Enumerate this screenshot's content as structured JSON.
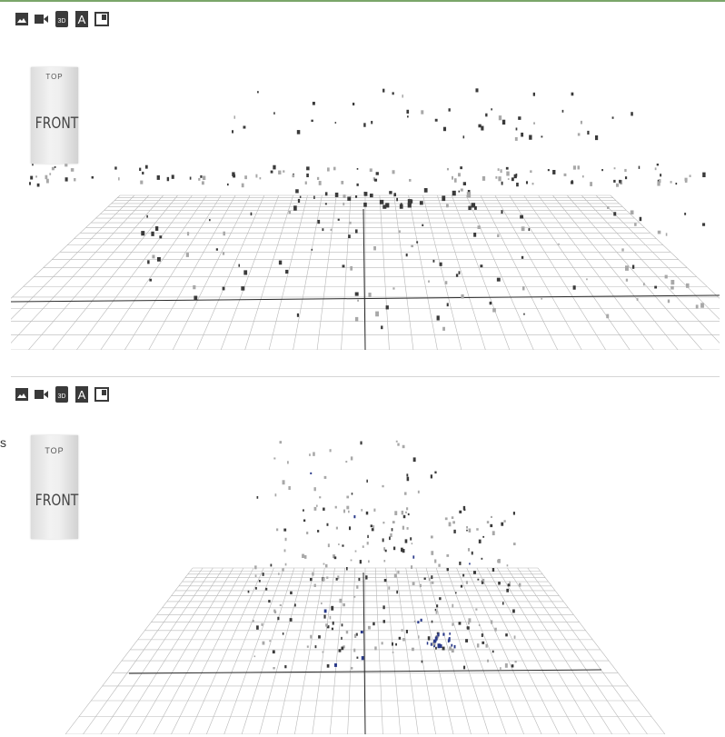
{
  "colors": {
    "accent": "#7aa66a",
    "grid": "#b8b8b8",
    "axis": "#2a2a2a",
    "points_dark": "#3a3a3a",
    "points_light": "#a8a8a8",
    "points_blue": "#2a3a8a"
  },
  "viewers": [
    {
      "toolbar": {
        "icons": [
          "image-icon",
          "video-icon",
          "3d-icon",
          "text-icon",
          "panel-icon"
        ],
        "label_3d": "3D",
        "label_text": "A"
      },
      "view_cube": {
        "top": "TOP",
        "front": "FRONT"
      }
    },
    {
      "toolbar": {
        "icons": [
          "image-icon",
          "video-icon",
          "3d-icon",
          "text-icon",
          "panel-icon"
        ],
        "label_3d": "3D",
        "label_text": "A"
      },
      "view_cube": {
        "top": "TOP",
        "front": "FRONT"
      }
    }
  ],
  "side_text": "s"
}
